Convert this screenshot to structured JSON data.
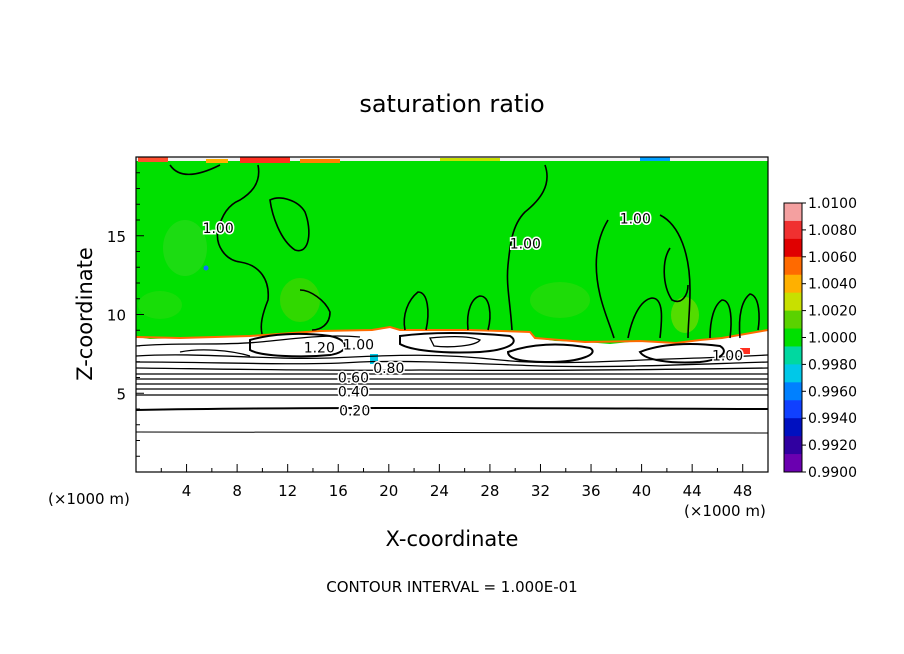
{
  "chart_data": {
    "type": "heatmap",
    "title": "saturation ratio",
    "xlabel": "X-coordinate",
    "ylabel": "Z-coordinate",
    "x_units": "(×1000 m)",
    "x_units_right": "(×1000 m)",
    "xlim": [
      0,
      50
    ],
    "ylim": [
      0,
      20
    ],
    "x_ticks": [
      4,
      8,
      12,
      16,
      20,
      24,
      28,
      32,
      36,
      40,
      44,
      48
    ],
    "y_ticks": [
      5,
      10,
      15
    ],
    "footer": "CONTOUR INTERVAL = 1.000E-01",
    "colorbar": {
      "ticks": [
        "1.0100",
        "1.0080",
        "1.0060",
        "1.0040",
        "1.0020",
        "1.0000",
        "0.9980",
        "0.9960",
        "0.9940",
        "0.9920",
        "0.9900"
      ],
      "colors": [
        "#f4a0a0",
        "#f03030",
        "#e00000",
        "#ff6a00",
        "#ffb000",
        "#c8e000",
        "#5ad200",
        "#00e000",
        "#00d8a0",
        "#00c8e8",
        "#0080ff",
        "#1040ff",
        "#0010c0",
        "#3000a0",
        "#6a00b0"
      ]
    },
    "contour_labels": [
      {
        "text": "1.00",
        "x": 6.5,
        "z": 15.5
      },
      {
        "text": "1.00",
        "x": 30.8,
        "z": 14.5
      },
      {
        "text": "1.00",
        "x": 39.5,
        "z": 16.1
      },
      {
        "text": "1.00",
        "x": 46.8,
        "z": 7.4
      },
      {
        "text": "1.20",
        "x": 14.5,
        "z": 7.9
      },
      {
        "text": "1.00",
        "x": 17.6,
        "z": 8.1
      },
      {
        "text": "0.80",
        "x": 20.0,
        "z": 6.6
      },
      {
        "text": "0.60",
        "x": 17.2,
        "z": 6.0
      },
      {
        "text": "0.40",
        "x": 17.2,
        "z": 5.1
      },
      {
        "text": "0.20",
        "x": 17.3,
        "z": 3.9
      }
    ]
  }
}
